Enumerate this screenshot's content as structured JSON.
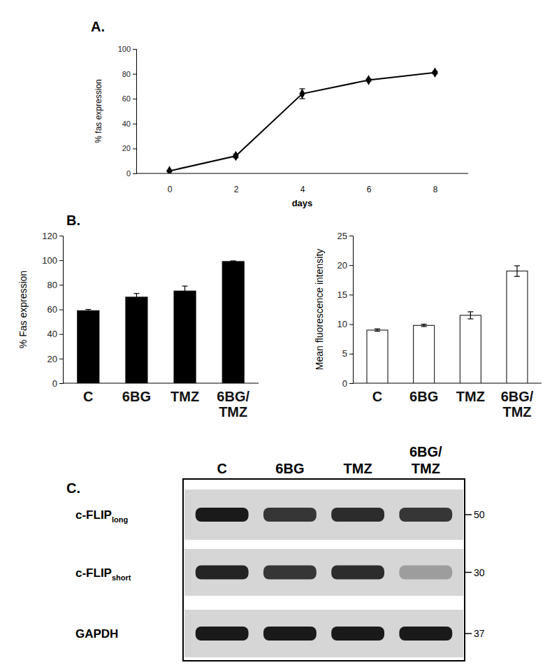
{
  "chart_data": [
    {
      "type": "line",
      "title": "A.",
      "x_label": "days",
      "y_label": "% fas expression",
      "categories": [
        "0",
        "2",
        "4",
        "6",
        "8"
      ],
      "values": [
        2,
        14,
        64,
        75,
        81
      ],
      "errors": [
        0.5,
        1.5,
        4,
        1,
        1
      ],
      "ylim": [
        0,
        100
      ],
      "yticks": [
        0,
        20,
        40,
        60,
        80,
        100
      ],
      "color": "#000000",
      "marker": "diamond",
      "line_style": "solid"
    },
    {
      "type": "bar",
      "title": "B.",
      "y_label": "% Fas expression",
      "categories": [
        "C",
        "6BG",
        "TMZ",
        "6BG/TMZ"
      ],
      "values": [
        59,
        70,
        75,
        99
      ],
      "errors": [
        1,
        3,
        4,
        0.5
      ],
      "ylim": [
        0,
        120
      ],
      "yticks": [
        0,
        20,
        40,
        60,
        80,
        100,
        120
      ],
      "color": "#000000"
    },
    {
      "type": "bar",
      "y_label": "Mean fluorescence intensity",
      "categories": [
        "C",
        "6BG",
        "TMZ",
        "6BG/TMZ"
      ],
      "values": [
        9,
        9.8,
        11.5,
        19
      ],
      "errors": [
        0.2,
        0.2,
        0.6,
        0.9
      ],
      "ylim": [
        0,
        25
      ],
      "yticks": [
        0,
        5,
        10,
        15,
        20,
        25
      ],
      "color": "#ffffff"
    },
    {
      "type": "blot",
      "title": "C.",
      "categories": [
        "C",
        "6BG",
        "TMZ",
        "6BG/TMZ"
      ],
      "intensity_range": [
        0,
        1
      ],
      "series": [
        {
          "name": "c-FLIP",
          "name_sub": "long",
          "values": [
            1,
            0.85,
            0.9,
            0.85
          ],
          "marker_kda": 50,
          "color": "#1a1a1a"
        },
        {
          "name": "c-FLIP",
          "name_sub": "short",
          "values": [
            0.95,
            0.85,
            0.9,
            0.3
          ],
          "marker_kda": 30,
          "color": "#1a1a1a"
        },
        {
          "name": "GAPDH",
          "values": [
            1,
            1,
            1,
            1
          ],
          "marker_kda": 37,
          "color": "#1a1a1a"
        }
      ]
    }
  ]
}
